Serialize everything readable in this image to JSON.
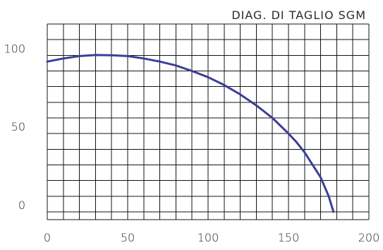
{
  "chart_data": {
    "type": "line",
    "title": "DIAG. DI TAGLIO SGM",
    "xlabel": "",
    "ylabel": "",
    "xlim": [
      0,
      200
    ],
    "ylim": [
      -5,
      120
    ],
    "grid": true,
    "x_ticks": [
      0,
      50,
      100,
      150,
      200
    ],
    "x_tick_labels": [
      "0",
      "50",
      "100",
      "150",
      "200"
    ],
    "y_ticks": [
      0,
      50,
      100
    ],
    "y_tick_labels": [
      "0",
      "50",
      "100"
    ],
    "x_minor_step": 10,
    "y_minor_step": 10,
    "series": [
      {
        "color": "#3b3f97",
        "x": [
          0,
          10,
          20,
          30,
          40,
          50,
          60,
          70,
          80,
          90,
          100,
          110,
          120,
          130,
          140,
          150,
          155,
          160,
          165,
          170,
          175,
          178
        ],
        "y": [
          96,
          98,
          99.5,
          100.2,
          100,
          99.5,
          98,
          96,
          93.5,
          90,
          86,
          81,
          75,
          68,
          60,
          50,
          44.5,
          38,
          30,
          22,
          10,
          0
        ]
      }
    ]
  }
}
